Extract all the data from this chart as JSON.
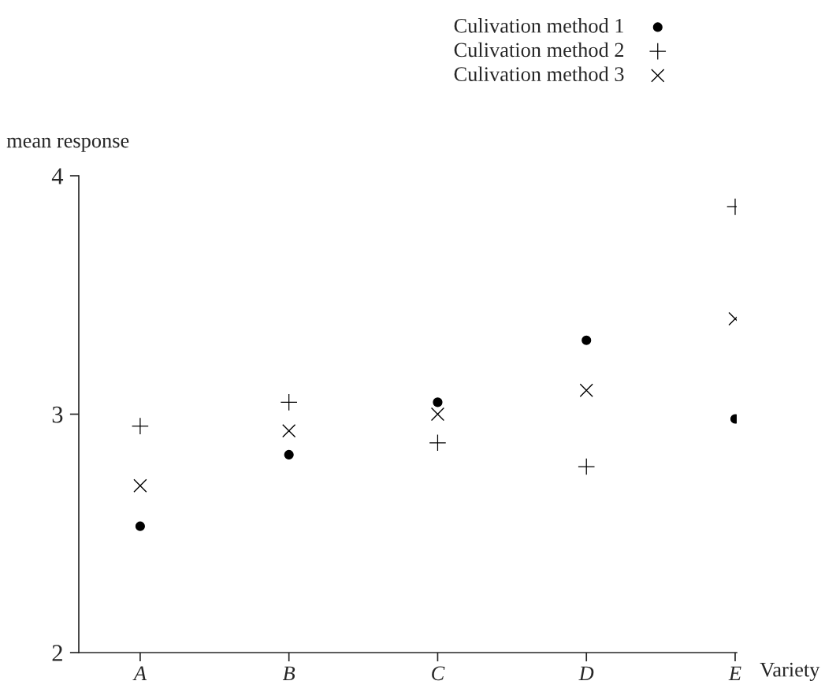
{
  "chart_data": {
    "type": "scatter",
    "xlabel": "Variety",
    "ylabel": "mean response",
    "categories": [
      "A",
      "B",
      "C",
      "D",
      "E"
    ],
    "series": [
      {
        "name": "Culivation method 1",
        "color": "#000000",
        "marker": "circle",
        "values": [
          2.53,
          2.83,
          3.05,
          3.31,
          2.98
        ]
      },
      {
        "name": "Culivation method 2",
        "color": "#000000",
        "marker": "cross",
        "values": [
          2.95,
          3.05,
          2.88,
          2.78,
          3.87
        ]
      },
      {
        "name": "Culivation method 3",
        "color": "#000000",
        "marker": "x",
        "values": [
          2.7,
          2.93,
          3.0,
          3.1,
          3.4
        ]
      }
    ],
    "ylim": [
      2,
      4
    ],
    "yticks": [
      2,
      3,
      4
    ],
    "grid": false,
    "legend": "top right"
  }
}
